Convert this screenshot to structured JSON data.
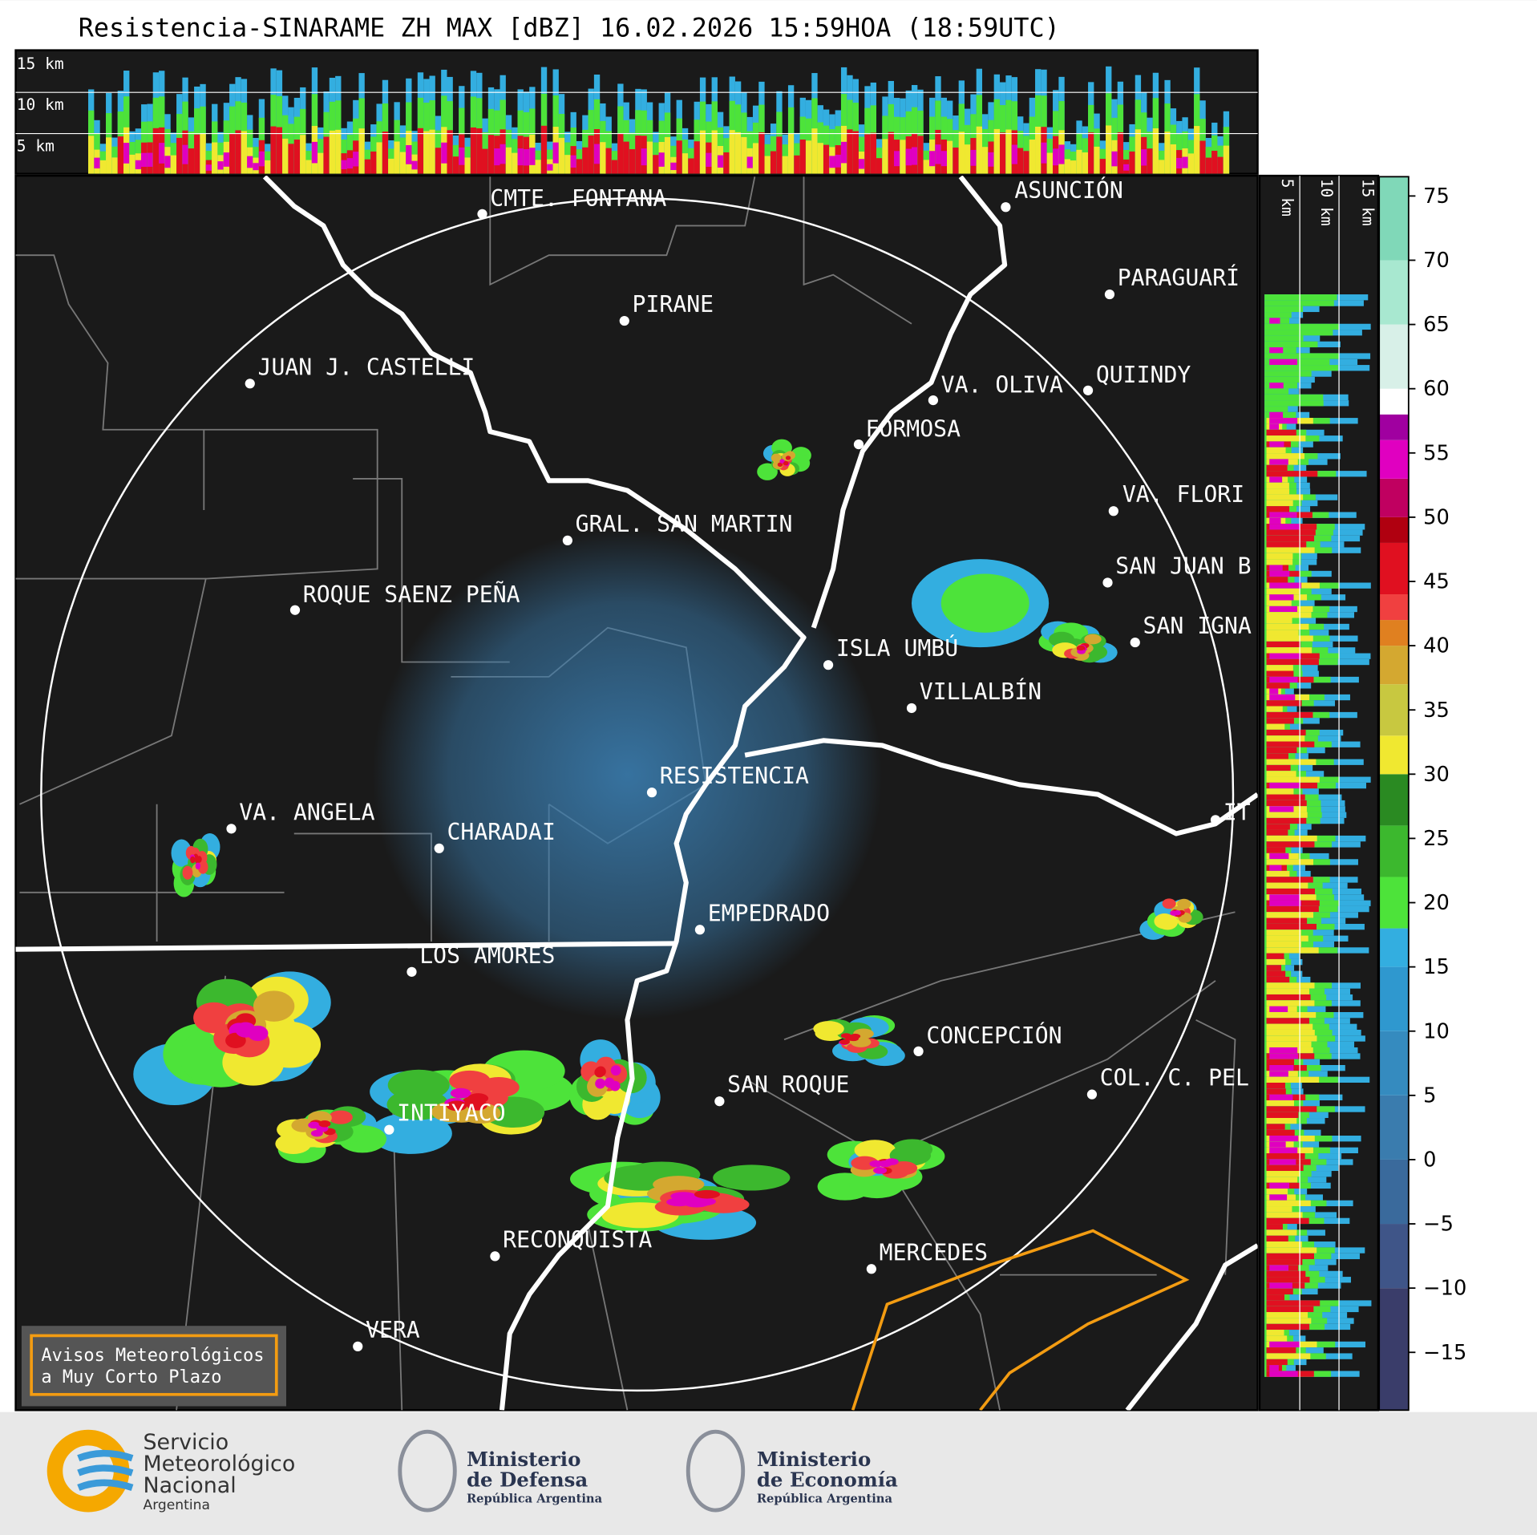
{
  "title": "Resistencia-SINARAME ZH MAX [dBZ] 16.02.2026 15:59HOA (18:59UTC)",
  "cross_section_labels": [
    "15 km",
    "10 km",
    "5 km"
  ],
  "side_labels": [
    "5 km",
    "10 km",
    "15 km"
  ],
  "places": [
    "CMTE. FONTANA",
    "PIRANE",
    "JUAN J. CASTELLI",
    "ASUNCIÓN",
    "PARAGUARÍ",
    "VA. OLIVA",
    "QUIINDY",
    "FORMOSA",
    "VA. FLORI",
    "SAN JUAN B",
    "SAN IGNA",
    "GRAL. SAN MARTIN",
    "ROQUE SAENZ PEÑA",
    "ISLA UMBÚ",
    "VILLALBÍN",
    "RESISTENCIA",
    "VA. ANGELA",
    "CHARADAI",
    "EMPEDRADO",
    "LOS AMORES",
    "CONCEPCIÓN",
    "SAN ROQUE",
    "COL. C. PEL",
    "INTIYACO",
    "RECONQUISTA",
    "MERCEDES",
    "VERA",
    "IT"
  ],
  "colorbar": {
    "ylim": [
      -19.5,
      76.5
    ],
    "ticks": [
      75,
      70,
      65,
      60,
      55,
      50,
      45,
      40,
      35,
      30,
      25,
      20,
      15,
      10,
      5,
      0,
      {
        "value": -5,
        "label": "−5"
      },
      {
        "value": -10,
        "label": "−10"
      },
      {
        "value": -15,
        "label": "−15"
      }
    ],
    "bands": [
      {
        "from": -19.5,
        "to": -10,
        "color": "#3a3d6a"
      },
      {
        "from": -10,
        "to": -5,
        "color": "#3f5588"
      },
      {
        "from": -5,
        "to": 0,
        "color": "#3a6a9c"
      },
      {
        "from": 0,
        "to": 5,
        "color": "#3a7cae"
      },
      {
        "from": 5,
        "to": 10,
        "color": "#358bbf"
      },
      {
        "from": 10,
        "to": 15,
        "color": "#2f98cf"
      },
      {
        "from": 15,
        "to": 18,
        "color": "#33aee0"
      },
      {
        "from": 18,
        "to": 22,
        "color": "#4de33a"
      },
      {
        "from": 22,
        "to": 26,
        "color": "#3cb82e"
      },
      {
        "from": 26,
        "to": 30,
        "color": "#2a8a22"
      },
      {
        "from": 30,
        "to": 33,
        "color": "#f0e830"
      },
      {
        "from": 33,
        "to": 37,
        "color": "#c8c840"
      },
      {
        "from": 37,
        "to": 40,
        "color": "#d4a830"
      },
      {
        "from": 40,
        "to": 42,
        "color": "#e08020"
      },
      {
        "from": 42,
        "to": 44,
        "color": "#f04040"
      },
      {
        "from": 44,
        "to": 48,
        "color": "#e01020"
      },
      {
        "from": 48,
        "to": 50,
        "color": "#b00010"
      },
      {
        "from": 50,
        "to": 53,
        "color": "#c00060"
      },
      {
        "from": 53,
        "to": 56,
        "color": "#e000c0"
      },
      {
        "from": 56,
        "to": 58,
        "color": "#a000a0"
      },
      {
        "from": 58,
        "to": 60,
        "color": "#ffffff"
      },
      {
        "from": 60,
        "to": 65,
        "color": "#d8f0e8"
      },
      {
        "from": 65,
        "to": 70,
        "color": "#a8e8d0"
      },
      {
        "from": 70,
        "to": 76.5,
        "color": "#80d8b8"
      }
    ]
  },
  "warning_box": [
    "Avisos Meteorológicos",
    "a Muy Corto Plazo"
  ],
  "logos": {
    "smn": [
      "Servicio",
      "Meteorológico",
      "Nacional",
      "Argentina"
    ],
    "defensa": [
      "Ministerio",
      "de Defensa",
      "República Argentina"
    ],
    "economia": [
      "Ministerio",
      "de Economía",
      "República Argentina"
    ]
  }
}
